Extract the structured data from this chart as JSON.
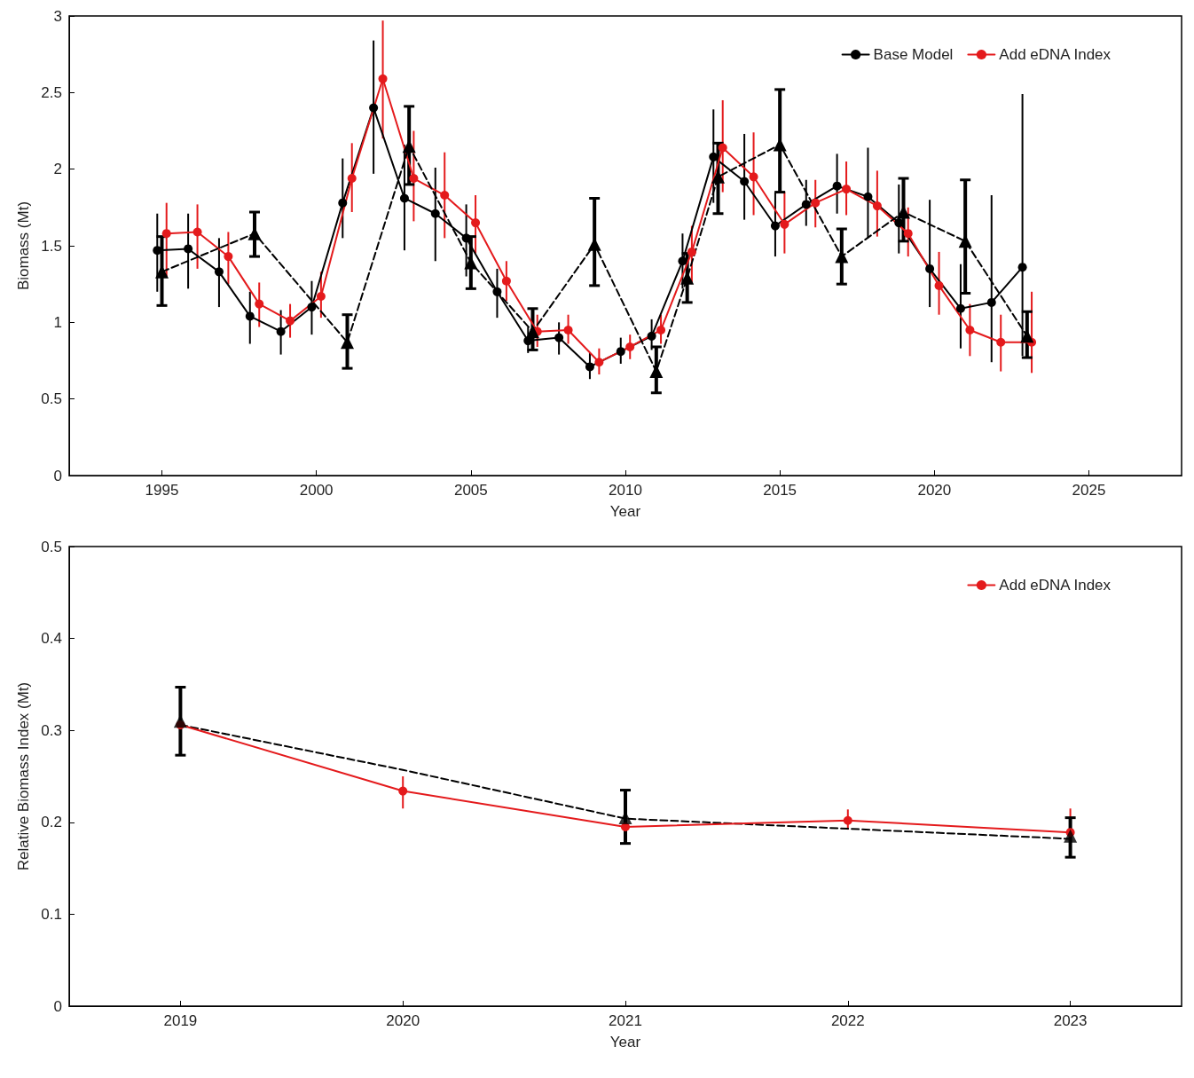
{
  "chart_data": [
    {
      "type": "line",
      "xlabel": "Year",
      "ylabel": "Biomass (Mt)",
      "xlim": [
        1992,
        2028
      ],
      "xticks": [
        1995,
        2000,
        2005,
        2010,
        2015,
        2020,
        2025
      ],
      "ylim": [
        0,
        3
      ],
      "yticks": [
        0,
        0.5,
        1,
        1.5,
        2,
        2.5,
        3
      ],
      "grid": false,
      "legend": "top right",
      "series": [
        {
          "name": "Base Model",
          "color": "#000000",
          "marker": "circle",
          "line_style": "solid",
          "x": [
            1994.85,
            1995.85,
            1996.85,
            1997.85,
            1998.85,
            1999.85,
            2000.85,
            2001.85,
            2002.85,
            2003.85,
            2004.85,
            2005.85,
            2006.85,
            2007.85,
            2008.85,
            2009.85,
            2010.85,
            2011.85,
            2012.85,
            2013.85,
            2014.85,
            2015.85,
            2016.85,
            2017.85,
            2018.85,
            2019.85,
            2020.85,
            2021.85,
            2022.85
          ],
          "values": [
            1.47,
            1.48,
            1.33,
            1.04,
            0.94,
            1.1,
            1.78,
            2.4,
            1.81,
            1.71,
            1.55,
            1.2,
            0.88,
            0.9,
            0.71,
            0.81,
            0.91,
            1.4,
            2.08,
            1.92,
            1.63,
            1.77,
            1.89,
            1.82,
            1.65,
            1.35,
            1.09,
            1.13,
            1.36
          ],
          "errors": [
            [
              1.2,
              1.71
            ],
            [
              1.22,
              1.71
            ],
            [
              1.1,
              1.55
            ],
            [
              0.86,
              1.2
            ],
            [
              0.79,
              1.08
            ],
            [
              0.92,
              1.27
            ],
            [
              1.55,
              2.07
            ],
            [
              1.97,
              2.84
            ],
            [
              1.47,
              2.16
            ],
            [
              1.4,
              2.01
            ],
            [
              1.3,
              1.77
            ],
            [
              1.03,
              1.35
            ],
            [
              0.8,
              0.97
            ],
            [
              0.79,
              1.0
            ],
            [
              0.63,
              0.8
            ],
            [
              0.73,
              0.9
            ],
            [
              0.82,
              1.02
            ],
            [
              1.22,
              1.58
            ],
            [
              1.78,
              2.39
            ],
            [
              1.67,
              2.23
            ],
            [
              1.43,
              1.85
            ],
            [
              1.63,
              1.93
            ],
            [
              1.71,
              2.1
            ],
            [
              1.55,
              2.14
            ],
            [
              1.45,
              1.9
            ],
            [
              1.1,
              1.8
            ],
            [
              0.83,
              1.38
            ],
            [
              0.74,
              1.83
            ],
            [
              0.78,
              2.49
            ]
          ]
        },
        {
          "name": "Add eDNA Index",
          "color": "#e41a1c",
          "marker": "circle",
          "line_style": "solid",
          "x": [
            1995.15,
            1996.15,
            1997.15,
            1998.15,
            1999.15,
            2000.15,
            2001.15,
            2002.15,
            2003.15,
            2004.15,
            2005.15,
            2006.15,
            2007.15,
            2008.15,
            2009.15,
            2010.15,
            2011.15,
            2012.15,
            2013.15,
            2014.15,
            2015.15,
            2016.15,
            2017.15,
            2018.15,
            2019.15,
            2020.15,
            2021.15,
            2022.15,
            2023.15
          ],
          "values": [
            1.58,
            1.59,
            1.43,
            1.12,
            1.01,
            1.17,
            1.94,
            2.59,
            1.94,
            1.83,
            1.65,
            1.27,
            0.94,
            0.95,
            0.74,
            0.84,
            0.95,
            1.46,
            2.14,
            1.95,
            1.64,
            1.78,
            1.87,
            1.76,
            1.58,
            1.24,
            0.95,
            0.87,
            0.87
          ],
          "errors": [
            [
              1.3,
              1.78
            ],
            [
              1.35,
              1.77
            ],
            [
              1.25,
              1.59
            ],
            [
              0.97,
              1.26
            ],
            [
              0.9,
              1.12
            ],
            [
              1.03,
              1.33
            ],
            [
              1.72,
              2.17
            ],
            [
              2.2,
              2.97
            ],
            [
              1.66,
              2.25
            ],
            [
              1.55,
              2.11
            ],
            [
              1.45,
              1.83
            ],
            [
              1.14,
              1.4
            ],
            [
              0.84,
              1.05
            ],
            [
              0.86,
              1.05
            ],
            [
              0.66,
              0.83
            ],
            [
              0.76,
              0.92
            ],
            [
              0.86,
              1.05
            ],
            [
              1.25,
              1.63
            ],
            [
              1.85,
              2.45
            ],
            [
              1.7,
              2.24
            ],
            [
              1.45,
              1.85
            ],
            [
              1.62,
              1.93
            ],
            [
              1.7,
              2.05
            ],
            [
              1.56,
              1.99
            ],
            [
              1.43,
              1.75
            ],
            [
              1.05,
              1.46
            ],
            [
              0.78,
              1.12
            ],
            [
              0.68,
              1.05
            ],
            [
              0.67,
              1.2
            ]
          ]
        },
        {
          "color": "#000000",
          "marker": "triangle",
          "line_style": "dashed",
          "x": [
            1995,
            1998,
            2001,
            2003,
            2005,
            2007,
            2009,
            2011,
            2012,
            2013,
            2015,
            2017,
            2019,
            2021,
            2023
          ],
          "values": [
            1.33,
            1.58,
            0.87,
            2.15,
            1.39,
            0.94,
            1.51,
            0.68,
            1.29,
            1.95,
            2.16,
            1.43,
            1.72,
            1.53,
            0.91
          ],
          "errors": [
            [
              1.11,
              1.56
            ],
            [
              1.43,
              1.72
            ],
            [
              0.7,
              1.05
            ],
            [
              1.9,
              2.41
            ],
            [
              1.22,
              1.56
            ],
            [
              0.82,
              1.09
            ],
            [
              1.24,
              1.81
            ],
            [
              0.54,
              0.84
            ],
            [
              1.13,
              1.45
            ],
            [
              1.71,
              2.17
            ],
            [
              1.85,
              2.52
            ],
            [
              1.25,
              1.61
            ],
            [
              1.53,
              1.94
            ],
            [
              1.19,
              1.93
            ],
            [
              0.77,
              1.07
            ]
          ]
        }
      ]
    },
    {
      "type": "line",
      "xlabel": "Year",
      "ylabel": "Relative Biomass Index (Mt)",
      "xlim": [
        2018.5,
        2023.5
      ],
      "xticks": [
        2019,
        2020,
        2021,
        2022,
        2023
      ],
      "ylim": [
        0,
        0.5
      ],
      "yticks": [
        0,
        0.1,
        0.2,
        0.3,
        0.4,
        0.5
      ],
      "grid": false,
      "legend": "top right",
      "series": [
        {
          "color": "#000000",
          "marker": "none",
          "line_style": "dashed",
          "x": [
            2019,
            2020,
            2021,
            2022,
            2023
          ],
          "values": [
            0.306,
            0.257,
            0.204,
            0.193,
            0.182
          ]
        },
        {
          "name": "Add eDNA Index",
          "color": "#e41a1c",
          "marker": "circle",
          "line_style": "solid",
          "x": [
            2019,
            2020,
            2021,
            2022,
            2023
          ],
          "values": [
            0.306,
            0.234,
            0.195,
            0.202,
            0.189
          ],
          "errors": [
            null,
            [
              0.215,
              0.25
            ],
            null,
            [
              0.192,
              0.214
            ],
            [
              0.175,
              0.215
            ]
          ]
        },
        {
          "type": "scatter",
          "color": "#000000",
          "marker": "triangle",
          "x": [
            2019,
            2021,
            2023
          ],
          "values": [
            0.31,
            0.205,
            0.185
          ],
          "errors": [
            [
              0.273,
              0.347
            ],
            [
              0.177,
              0.235
            ],
            [
              0.162,
              0.205
            ]
          ]
        }
      ]
    }
  ]
}
